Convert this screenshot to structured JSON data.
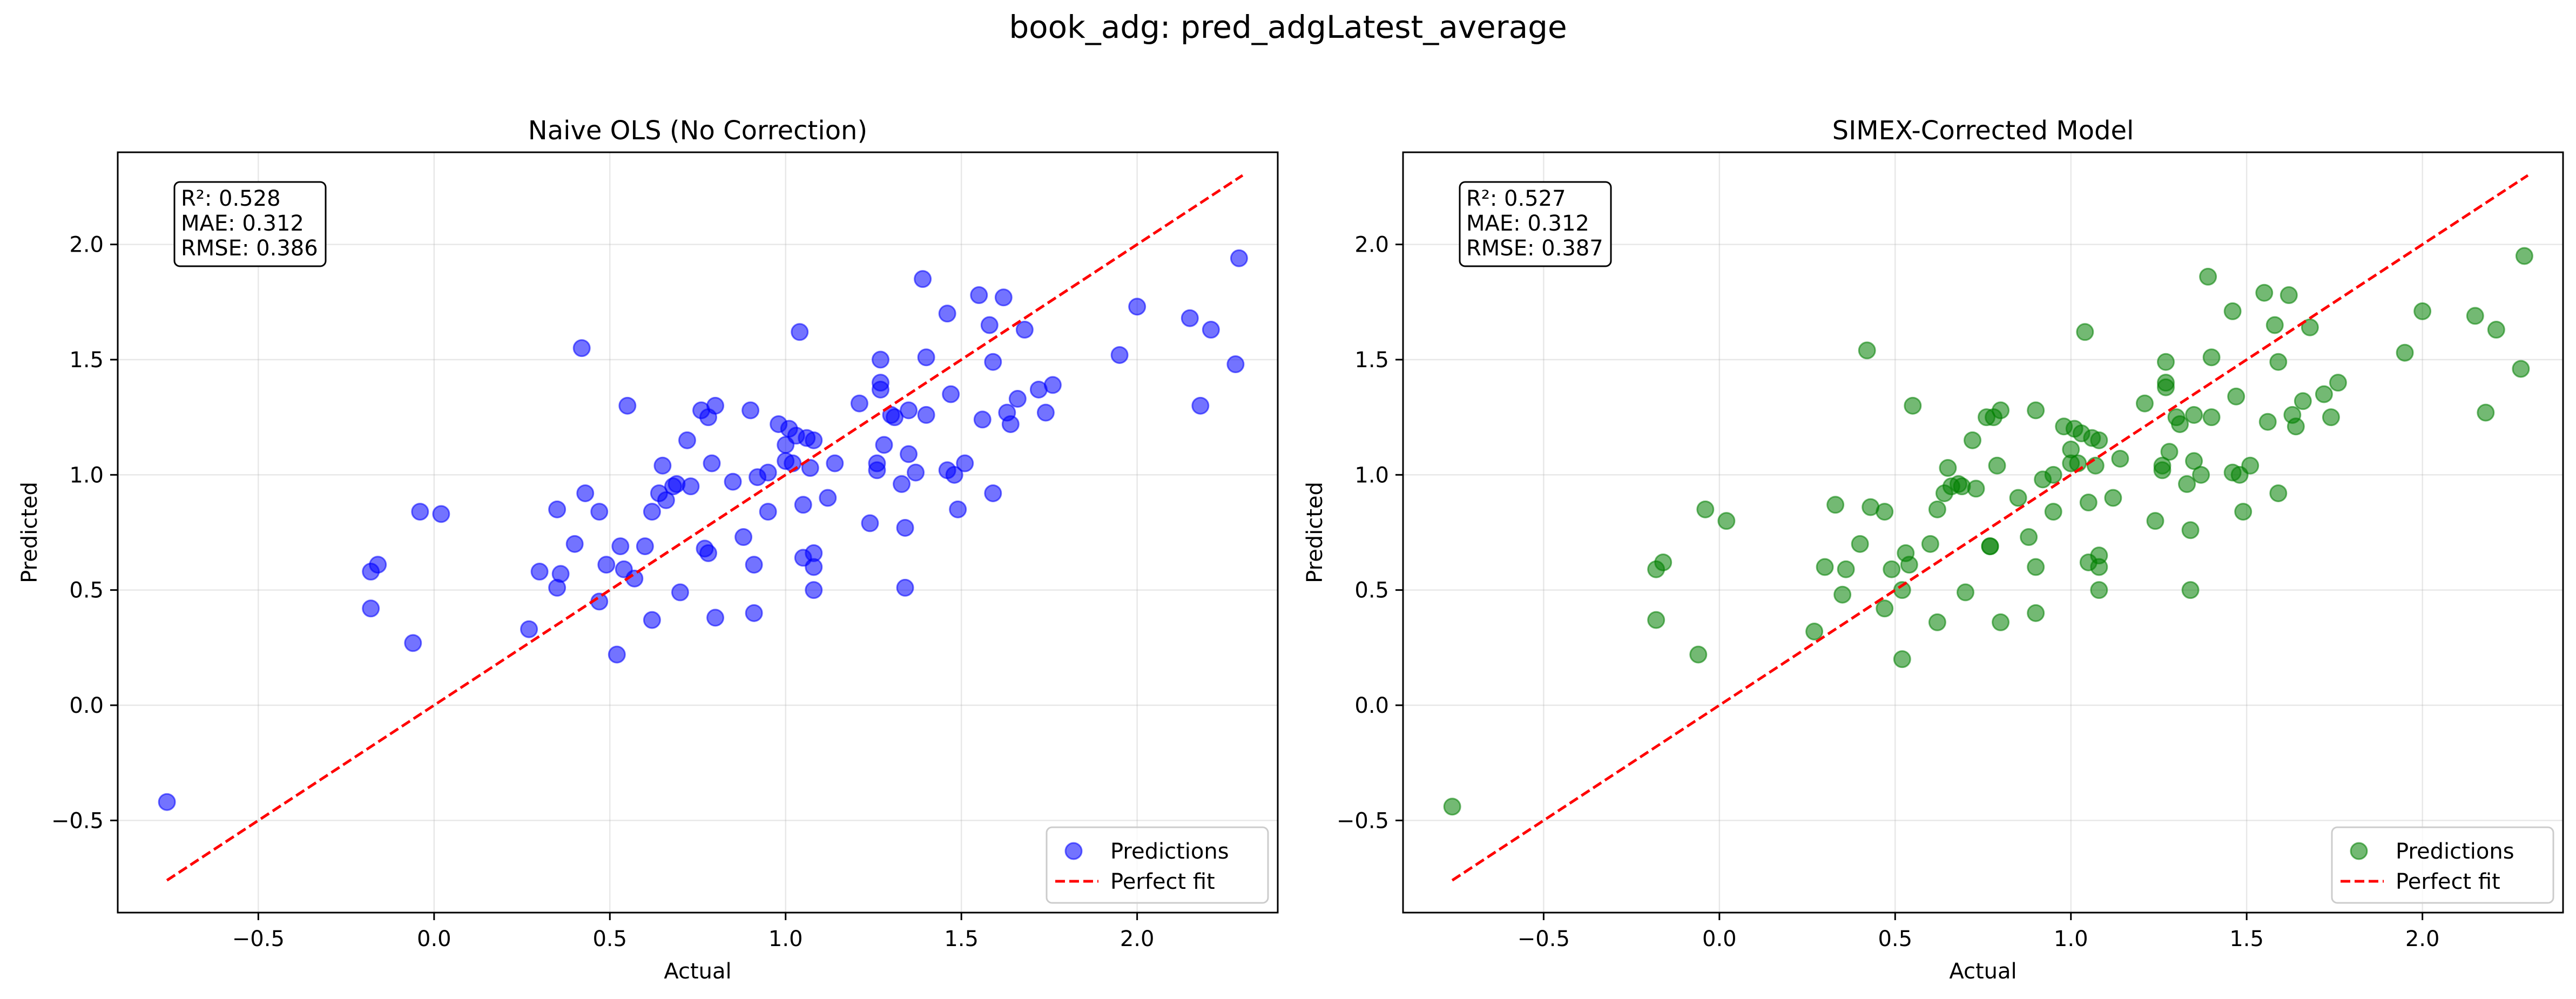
{
  "figure": {
    "suptitle": "book_adg: pred_adgLatest_average"
  },
  "chart_data": [
    {
      "type": "scatter",
      "title": "Naive OLS (No Correction)",
      "xlabel": "Actual",
      "ylabel": "Predicted",
      "xlim": [
        -0.9,
        2.4
      ],
      "ylim": [
        -0.9,
        2.4
      ],
      "xticks": [
        -0.5,
        0.0,
        0.5,
        1.0,
        1.5,
        2.0
      ],
      "yticks": [
        -0.5,
        0.0,
        0.5,
        1.0,
        1.5,
        2.0
      ],
      "xtick_labels": [
        "−0.5",
        "0.0",
        "0.5",
        "1.0",
        "1.5",
        "2.0"
      ],
      "ytick_labels": [
        "−0.5",
        "0.0",
        "0.5",
        "1.0",
        "1.5",
        "2.0"
      ],
      "grid": true,
      "stats_box": [
        "R²: 0.528",
        "MAE: 0.312",
        "RMSE: 0.386"
      ],
      "legend_position": "lower-right",
      "point_color": "#0000ff",
      "line_color": "#ff0000",
      "series": [
        {
          "name": "Predictions",
          "kind": "scatter",
          "points": [
            [
              -0.76,
              -0.42
            ],
            [
              -0.18,
              0.58
            ],
            [
              -0.16,
              0.61
            ],
            [
              -0.18,
              0.42
            ],
            [
              -0.06,
              0.27
            ],
            [
              -0.04,
              0.84
            ],
            [
              0.02,
              0.83
            ],
            [
              0.27,
              0.33
            ],
            [
              0.3,
              0.58
            ],
            [
              0.35,
              0.51
            ],
            [
              0.36,
              0.57
            ],
            [
              0.35,
              0.85
            ],
            [
              0.4,
              0.7
            ],
            [
              0.42,
              1.55
            ],
            [
              0.43,
              0.92
            ],
            [
              0.47,
              0.45
            ],
            [
              0.47,
              0.84
            ],
            [
              0.49,
              0.61
            ],
            [
              0.52,
              0.22
            ],
            [
              0.53,
              0.69
            ],
            [
              0.54,
              0.59
            ],
            [
              0.55,
              1.3
            ],
            [
              0.57,
              0.55
            ],
            [
              0.6,
              0.69
            ],
            [
              0.62,
              0.37
            ],
            [
              0.62,
              0.84
            ],
            [
              0.64,
              0.92
            ],
            [
              0.65,
              1.04
            ],
            [
              0.66,
              0.89
            ],
            [
              0.68,
              0.95
            ],
            [
              0.69,
              0.96
            ],
            [
              0.7,
              0.49
            ],
            [
              0.72,
              1.15
            ],
            [
              0.73,
              0.95
            ],
            [
              0.76,
              1.28
            ],
            [
              0.77,
              0.68
            ],
            [
              0.78,
              0.66
            ],
            [
              0.78,
              1.25
            ],
            [
              0.79,
              1.05
            ],
            [
              0.8,
              1.3
            ],
            [
              0.8,
              0.38
            ],
            [
              0.85,
              0.97
            ],
            [
              0.88,
              0.73
            ],
            [
              0.9,
              1.28
            ],
            [
              0.91,
              0.61
            ],
            [
              0.91,
              0.4
            ],
            [
              0.92,
              0.99
            ],
            [
              0.95,
              0.84
            ],
            [
              0.95,
              1.01
            ],
            [
              0.98,
              1.22
            ],
            [
              1.0,
              1.06
            ],
            [
              1.0,
              1.13
            ],
            [
              1.01,
              1.2
            ],
            [
              1.02,
              1.05
            ],
            [
              1.03,
              1.17
            ],
            [
              1.04,
              1.62
            ],
            [
              1.05,
              0.87
            ],
            [
              1.05,
              0.64
            ],
            [
              1.06,
              1.16
            ],
            [
              1.07,
              1.03
            ],
            [
              1.08,
              0.5
            ],
            [
              1.08,
              0.6
            ],
            [
              1.08,
              0.66
            ],
            [
              1.08,
              1.15
            ],
            [
              1.12,
              0.9
            ],
            [
              1.14,
              1.05
            ],
            [
              1.21,
              1.31
            ],
            [
              1.24,
              0.79
            ],
            [
              1.26,
              1.05
            ],
            [
              1.26,
              1.02
            ],
            [
              1.27,
              1.37
            ],
            [
              1.27,
              1.4
            ],
            [
              1.27,
              1.5
            ],
            [
              1.28,
              1.13
            ],
            [
              1.3,
              1.26
            ],
            [
              1.31,
              1.25
            ],
            [
              1.33,
              0.96
            ],
            [
              1.34,
              0.51
            ],
            [
              1.34,
              0.77
            ],
            [
              1.35,
              1.28
            ],
            [
              1.35,
              1.09
            ],
            [
              1.37,
              1.01
            ],
            [
              1.39,
              1.85
            ],
            [
              1.4,
              1.51
            ],
            [
              1.4,
              1.26
            ],
            [
              1.46,
              1.02
            ],
            [
              1.46,
              1.7
            ],
            [
              1.47,
              1.35
            ],
            [
              1.48,
              1.0
            ],
            [
              1.49,
              0.85
            ],
            [
              1.51,
              1.05
            ],
            [
              1.55,
              1.78
            ],
            [
              1.56,
              1.24
            ],
            [
              1.58,
              1.65
            ],
            [
              1.59,
              1.49
            ],
            [
              1.59,
              0.92
            ],
            [
              1.62,
              1.77
            ],
            [
              1.63,
              1.27
            ],
            [
              1.64,
              1.22
            ],
            [
              1.66,
              1.33
            ],
            [
              1.68,
              1.63
            ],
            [
              1.72,
              1.37
            ],
            [
              1.74,
              1.27
            ],
            [
              1.76,
              1.39
            ],
            [
              1.95,
              1.52
            ],
            [
              2.0,
              1.73
            ],
            [
              2.15,
              1.68
            ],
            [
              2.18,
              1.3
            ],
            [
              2.21,
              1.63
            ],
            [
              2.28,
              1.48
            ],
            [
              2.29,
              1.94
            ]
          ]
        },
        {
          "name": "Perfect fit",
          "kind": "line",
          "x": [
            -0.76,
            2.3
          ],
          "y": [
            -0.76,
            2.3
          ]
        }
      ]
    },
    {
      "type": "scatter",
      "title": "SIMEX-Corrected Model",
      "xlabel": "Actual",
      "ylabel": "Predicted",
      "xlim": [
        -0.9,
        2.4
      ],
      "ylim": [
        -0.9,
        2.4
      ],
      "xticks": [
        -0.5,
        0.0,
        0.5,
        1.0,
        1.5,
        2.0
      ],
      "yticks": [
        -0.5,
        0.0,
        0.5,
        1.0,
        1.5,
        2.0
      ],
      "xtick_labels": [
        "−0.5",
        "0.0",
        "0.5",
        "1.0",
        "1.5",
        "2.0"
      ],
      "ytick_labels": [
        "−0.5",
        "0.0",
        "0.5",
        "1.0",
        "1.5",
        "2.0"
      ],
      "grid": true,
      "stats_box": [
        "R²: 0.527",
        "MAE: 0.312",
        "RMSE: 0.387"
      ],
      "legend_position": "lower-right",
      "point_color": "#008000",
      "line_color": "#ff0000",
      "series": [
        {
          "name": "Predictions",
          "kind": "scatter",
          "points": [
            [
              -0.76,
              -0.44
            ],
            [
              -0.18,
              0.59
            ],
            [
              -0.16,
              0.62
            ],
            [
              -0.18,
              0.37
            ],
            [
              -0.06,
              0.22
            ],
            [
              -0.04,
              0.85
            ],
            [
              0.02,
              0.8
            ],
            [
              0.27,
              0.32
            ],
            [
              0.3,
              0.6
            ],
            [
              0.35,
              0.48
            ],
            [
              0.36,
              0.59
            ],
            [
              0.33,
              0.87
            ],
            [
              0.4,
              0.7
            ],
            [
              0.42,
              1.54
            ],
            [
              0.43,
              0.86
            ],
            [
              0.47,
              0.42
            ],
            [
              0.47,
              0.84
            ],
            [
              0.49,
              0.59
            ],
            [
              0.52,
              0.2
            ],
            [
              0.53,
              0.66
            ],
            [
              0.54,
              0.61
            ],
            [
              0.55,
              1.3
            ],
            [
              0.52,
              0.5
            ],
            [
              0.6,
              0.7
            ],
            [
              0.62,
              0.36
            ],
            [
              0.62,
              0.85
            ],
            [
              0.64,
              0.92
            ],
            [
              0.65,
              1.03
            ],
            [
              0.66,
              0.95
            ],
            [
              0.68,
              0.96
            ],
            [
              0.69,
              0.95
            ],
            [
              0.7,
              0.49
            ],
            [
              0.72,
              1.15
            ],
            [
              0.73,
              0.94
            ],
            [
              0.76,
              1.25
            ],
            [
              0.77,
              0.69
            ],
            [
              0.77,
              0.69
            ],
            [
              0.78,
              1.25
            ],
            [
              0.79,
              1.04
            ],
            [
              0.8,
              1.28
            ],
            [
              0.8,
              0.36
            ],
            [
              0.85,
              0.9
            ],
            [
              0.88,
              0.73
            ],
            [
              0.9,
              1.28
            ],
            [
              0.9,
              0.6
            ],
            [
              0.9,
              0.4
            ],
            [
              0.92,
              0.98
            ],
            [
              0.95,
              0.84
            ],
            [
              0.95,
              1.0
            ],
            [
              0.98,
              1.21
            ],
            [
              1.0,
              1.05
            ],
            [
              1.0,
              1.11
            ],
            [
              1.01,
              1.2
            ],
            [
              1.02,
              1.05
            ],
            [
              1.03,
              1.18
            ],
            [
              1.04,
              1.62
            ],
            [
              1.05,
              0.88
            ],
            [
              1.05,
              0.62
            ],
            [
              1.06,
              1.16
            ],
            [
              1.07,
              1.04
            ],
            [
              1.08,
              0.5
            ],
            [
              1.08,
              0.6
            ],
            [
              1.08,
              0.65
            ],
            [
              1.08,
              1.15
            ],
            [
              1.12,
              0.9
            ],
            [
              1.14,
              1.07
            ],
            [
              1.21,
              1.31
            ],
            [
              1.24,
              0.8
            ],
            [
              1.26,
              1.02
            ],
            [
              1.26,
              1.04
            ],
            [
              1.27,
              1.38
            ],
            [
              1.27,
              1.4
            ],
            [
              1.27,
              1.49
            ],
            [
              1.28,
              1.1
            ],
            [
              1.3,
              1.25
            ],
            [
              1.31,
              1.22
            ],
            [
              1.33,
              0.96
            ],
            [
              1.34,
              0.5
            ],
            [
              1.34,
              0.76
            ],
            [
              1.35,
              1.06
            ],
            [
              1.35,
              1.26
            ],
            [
              1.37,
              1.0
            ],
            [
              1.39,
              1.86
            ],
            [
              1.4,
              1.51
            ],
            [
              1.4,
              1.25
            ],
            [
              1.46,
              1.01
            ],
            [
              1.46,
              1.71
            ],
            [
              1.47,
              1.34
            ],
            [
              1.48,
              1.0
            ],
            [
              1.49,
              0.84
            ],
            [
              1.51,
              1.04
            ],
            [
              1.55,
              1.79
            ],
            [
              1.56,
              1.23
            ],
            [
              1.58,
              1.65
            ],
            [
              1.59,
              1.49
            ],
            [
              1.59,
              0.92
            ],
            [
              1.62,
              1.78
            ],
            [
              1.63,
              1.26
            ],
            [
              1.64,
              1.21
            ],
            [
              1.66,
              1.32
            ],
            [
              1.68,
              1.64
            ],
            [
              1.72,
              1.35
            ],
            [
              1.74,
              1.25
            ],
            [
              1.76,
              1.4
            ],
            [
              1.95,
              1.53
            ],
            [
              2.0,
              1.71
            ],
            [
              2.15,
              1.69
            ],
            [
              2.18,
              1.27
            ],
            [
              2.21,
              1.63
            ],
            [
              2.28,
              1.46
            ],
            [
              2.29,
              1.95
            ]
          ]
        },
        {
          "name": "Perfect fit",
          "kind": "line",
          "x": [
            -0.76,
            2.3
          ],
          "y": [
            -0.76,
            2.3
          ]
        }
      ]
    }
  ]
}
